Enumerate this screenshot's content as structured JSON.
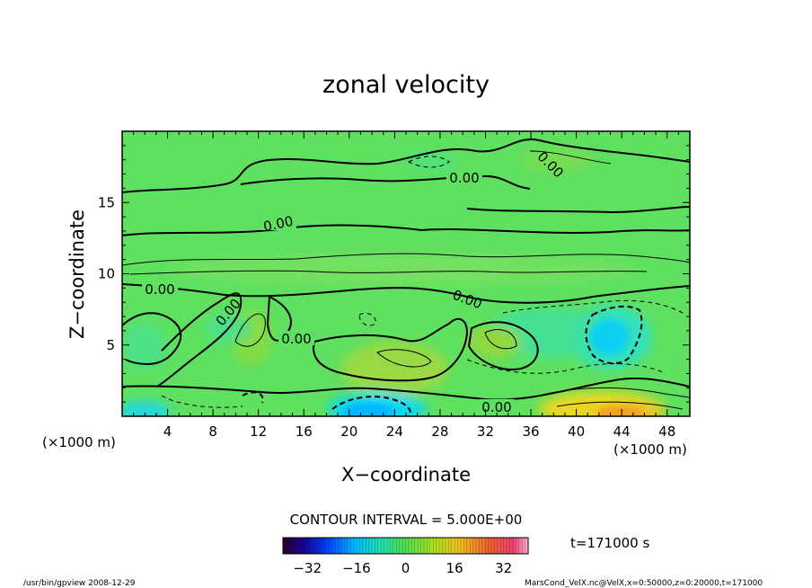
{
  "chart_data": {
    "type": "heatmap",
    "title": "zonal velocity",
    "xlabel": "X−coordinate",
    "ylabel": "Z−coordinate",
    "x_ticks": [
      "4",
      "8",
      "12",
      "16",
      "20",
      "24",
      "28",
      "32",
      "36",
      "40",
      "44",
      "48"
    ],
    "y_ticks": [
      "5",
      "10",
      "15"
    ],
    "x_unit_left": "(×1000 m)",
    "x_unit_right": "(×1000 m)",
    "xlim": [
      0,
      50
    ],
    "ylim": [
      0,
      20
    ],
    "contour_interval_text": "CONTOUR INTERVAL = 5.000E+00",
    "time_label": "t=171000 s",
    "colorbar": {
      "ticks": [
        "−32",
        "−16",
        "0",
        "16",
        "32"
      ],
      "range": [
        -40,
        40
      ]
    },
    "contour_labels": [
      "0.00",
      "0.00",
      "0.00",
      "0.00",
      "0.00",
      "0.00",
      "0.00",
      "0.00"
    ],
    "colors": {
      "background_field": "#60e060",
      "positive_max": "#ffe000",
      "negative_min": "#00b8ff"
    }
  },
  "footer": {
    "left": "/usr/bin/gpview   2008-12-29",
    "right": "MarsCond_VelX.nc@VelX,x=0:50000,z=0:20000,t=171000"
  }
}
